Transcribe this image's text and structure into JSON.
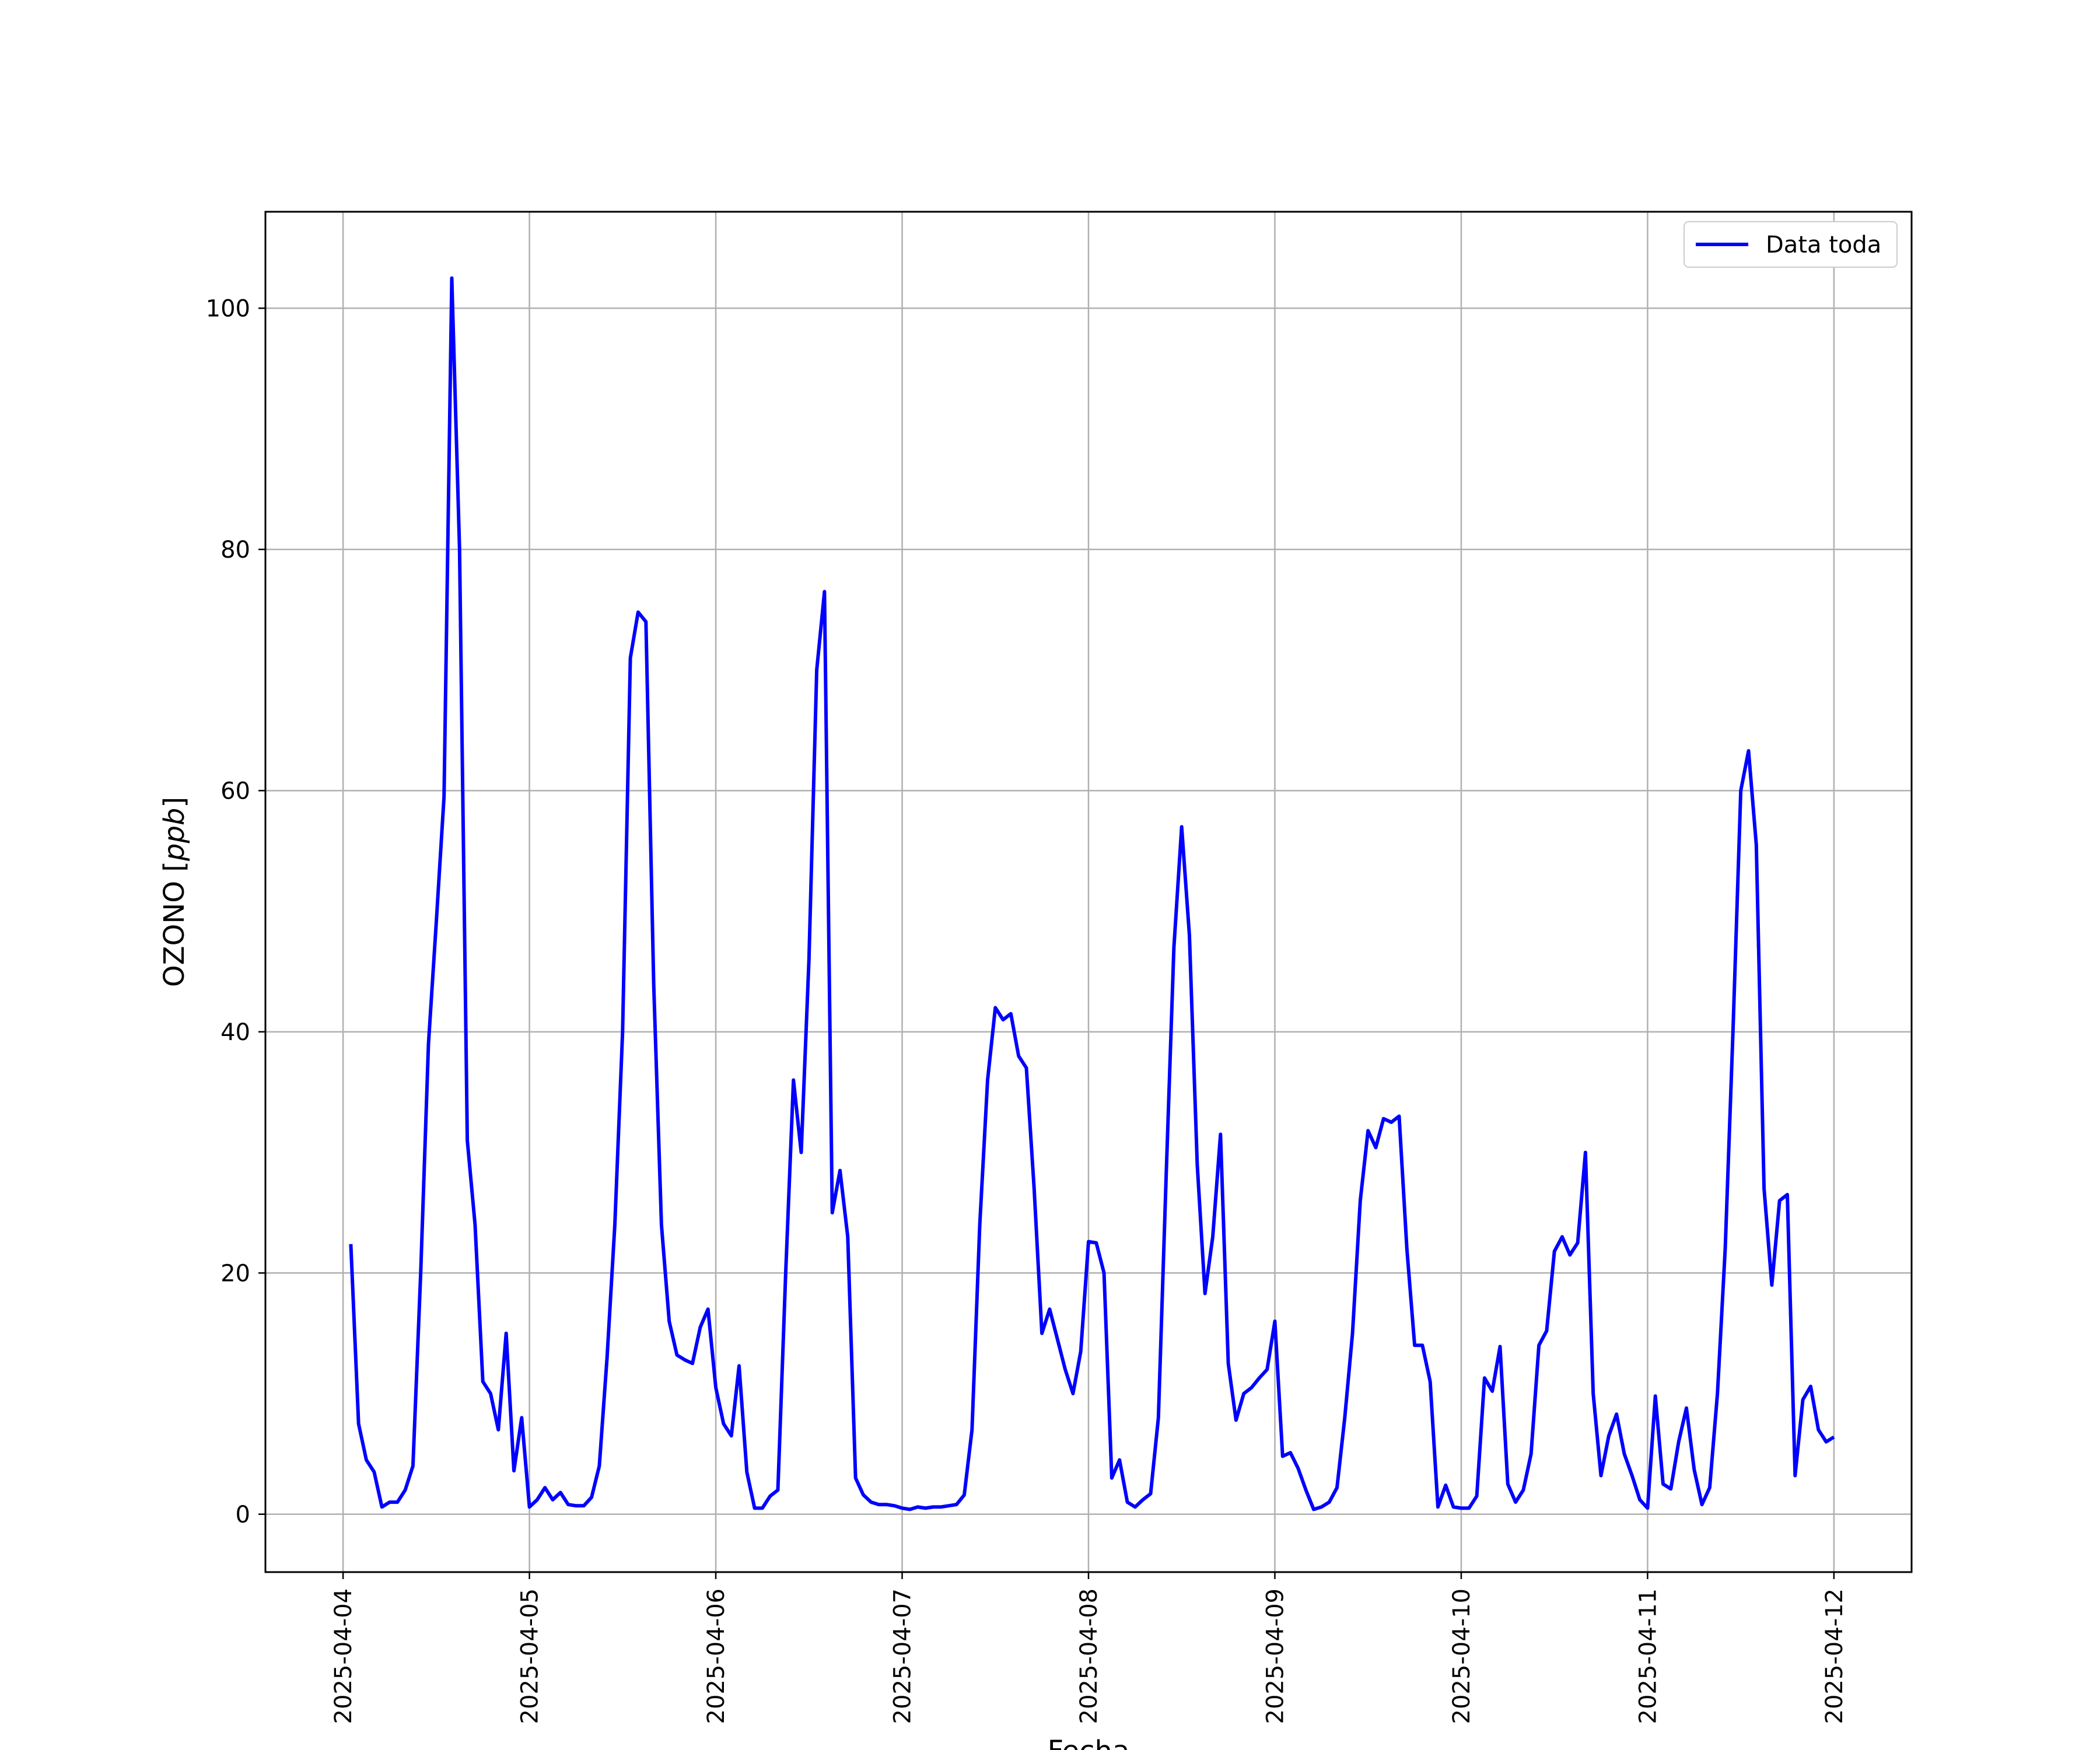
{
  "chart_data": {
    "type": "line",
    "title": "",
    "xlabel": "Fecha",
    "ylabel_prefix": "OZONO [",
    "ylabel_unit": "ppb",
    "ylabel_suffix": "]",
    "x_start": "2025-04-04T00:00",
    "x_end": "2025-04-12T00:00",
    "xlim": [
      "2025-04-03T14:00",
      "2025-04-12T10:00"
    ],
    "ylim": [
      -4.8,
      108
    ],
    "grid": true,
    "legend_position": "top-right",
    "xticks": [
      "2025-04-04",
      "2025-04-05",
      "2025-04-06",
      "2025-04-07",
      "2025-04-08",
      "2025-04-09",
      "2025-04-10",
      "2025-04-11",
      "2025-04-12"
    ],
    "yticks": [
      0,
      20,
      40,
      60,
      80,
      100
    ],
    "series": [
      {
        "name": "Data toda",
        "color": "#0000ff",
        "x": [
          "2025-04-04T01:00",
          "2025-04-04T02:00",
          "2025-04-04T03:00",
          "2025-04-04T04:00",
          "2025-04-04T05:00",
          "2025-04-04T06:00",
          "2025-04-04T07:00",
          "2025-04-04T08:00",
          "2025-04-04T09:00",
          "2025-04-04T10:00",
          "2025-04-04T11:00",
          "2025-04-04T12:00",
          "2025-04-04T13:00",
          "2025-04-04T14:00",
          "2025-04-04T15:00",
          "2025-04-04T16:00",
          "2025-04-04T17:00",
          "2025-04-04T18:00",
          "2025-04-04T19:00",
          "2025-04-04T20:00",
          "2025-04-04T21:00",
          "2025-04-04T22:00",
          "2025-04-04T23:00",
          "2025-04-05T00:00",
          "2025-04-05T01:00",
          "2025-04-05T02:00",
          "2025-04-05T03:00",
          "2025-04-05T04:00",
          "2025-04-05T05:00",
          "2025-04-05T06:00",
          "2025-04-05T07:00",
          "2025-04-05T08:00",
          "2025-04-05T09:00",
          "2025-04-05T10:00",
          "2025-04-05T11:00",
          "2025-04-05T12:00",
          "2025-04-05T13:00",
          "2025-04-05T14:00",
          "2025-04-05T15:00",
          "2025-04-05T16:00",
          "2025-04-05T17:00",
          "2025-04-05T18:00",
          "2025-04-05T19:00",
          "2025-04-05T20:00",
          "2025-04-05T21:00",
          "2025-04-05T22:00",
          "2025-04-05T23:00",
          "2025-04-06T00:00",
          "2025-04-06T01:00",
          "2025-04-06T02:00",
          "2025-04-06T03:00",
          "2025-04-06T04:00",
          "2025-04-06T05:00",
          "2025-04-06T06:00",
          "2025-04-06T07:00",
          "2025-04-06T08:00",
          "2025-04-06T09:00",
          "2025-04-06T10:00",
          "2025-04-06T11:00",
          "2025-04-06T12:00",
          "2025-04-06T13:00",
          "2025-04-06T14:00",
          "2025-04-06T15:00",
          "2025-04-06T16:00",
          "2025-04-06T17:00",
          "2025-04-06T18:00",
          "2025-04-06T19:00",
          "2025-04-06T20:00",
          "2025-04-06T21:00",
          "2025-04-06T22:00",
          "2025-04-06T23:00",
          "2025-04-07T00:00",
          "2025-04-07T01:00",
          "2025-04-07T02:00",
          "2025-04-07T03:00",
          "2025-04-07T04:00",
          "2025-04-07T05:00",
          "2025-04-07T06:00",
          "2025-04-07T07:00",
          "2025-04-07T08:00",
          "2025-04-07T09:00",
          "2025-04-07T10:00",
          "2025-04-07T11:00",
          "2025-04-07T12:00",
          "2025-04-07T13:00",
          "2025-04-07T14:00",
          "2025-04-07T15:00",
          "2025-04-07T16:00",
          "2025-04-07T17:00",
          "2025-04-07T18:00",
          "2025-04-07T19:00",
          "2025-04-07T20:00",
          "2025-04-07T21:00",
          "2025-04-07T22:00",
          "2025-04-07T23:00",
          "2025-04-08T00:00",
          "2025-04-08T01:00",
          "2025-04-08T02:00",
          "2025-04-08T03:00",
          "2025-04-08T04:00",
          "2025-04-08T05:00",
          "2025-04-08T06:00",
          "2025-04-08T07:00",
          "2025-04-08T08:00",
          "2025-04-08T09:00",
          "2025-04-08T10:00",
          "2025-04-08T11:00",
          "2025-04-08T12:00",
          "2025-04-08T13:00",
          "2025-04-08T14:00",
          "2025-04-08T15:00",
          "2025-04-08T16:00",
          "2025-04-08T17:00",
          "2025-04-08T18:00",
          "2025-04-08T19:00",
          "2025-04-08T20:00",
          "2025-04-08T21:00",
          "2025-04-08T22:00",
          "2025-04-08T23:00",
          "2025-04-09T00:00",
          "2025-04-09T01:00",
          "2025-04-09T02:00",
          "2025-04-09T03:00",
          "2025-04-09T04:00",
          "2025-04-09T05:00",
          "2025-04-09T06:00",
          "2025-04-09T07:00",
          "2025-04-09T08:00",
          "2025-04-09T09:00",
          "2025-04-09T10:00",
          "2025-04-09T11:00",
          "2025-04-09T12:00",
          "2025-04-09T13:00",
          "2025-04-09T14:00",
          "2025-04-09T15:00",
          "2025-04-09T16:00",
          "2025-04-09T17:00",
          "2025-04-09T18:00",
          "2025-04-09T19:00",
          "2025-04-09T20:00",
          "2025-04-09T21:00",
          "2025-04-09T22:00",
          "2025-04-09T23:00",
          "2025-04-10T00:00",
          "2025-04-10T01:00",
          "2025-04-10T02:00",
          "2025-04-10T03:00",
          "2025-04-10T04:00",
          "2025-04-10T05:00",
          "2025-04-10T06:00",
          "2025-04-10T07:00",
          "2025-04-10T08:00",
          "2025-04-10T09:00",
          "2025-04-10T10:00",
          "2025-04-10T11:00",
          "2025-04-10T12:00",
          "2025-04-10T13:00",
          "2025-04-10T14:00",
          "2025-04-10T15:00",
          "2025-04-10T16:00",
          "2025-04-10T17:00",
          "2025-04-10T18:00",
          "2025-04-10T19:00",
          "2025-04-10T20:00",
          "2025-04-10T21:00",
          "2025-04-10T22:00",
          "2025-04-10T23:00",
          "2025-04-11T00:00",
          "2025-04-11T01:00",
          "2025-04-11T02:00",
          "2025-04-11T03:00",
          "2025-04-11T04:00",
          "2025-04-11T05:00",
          "2025-04-11T06:00",
          "2025-04-11T07:00",
          "2025-04-11T08:00",
          "2025-04-11T09:00",
          "2025-04-11T10:00",
          "2025-04-11T11:00",
          "2025-04-11T12:00",
          "2025-04-11T13:00",
          "2025-04-11T14:00",
          "2025-04-11T15:00",
          "2025-04-11T16:00",
          "2025-04-11T17:00",
          "2025-04-11T18:00",
          "2025-04-11T19:00",
          "2025-04-11T20:00",
          "2025-04-11T21:00",
          "2025-04-11T22:00",
          "2025-04-11T23:00",
          "2025-04-12T00:00"
        ],
        "y": [
          22.4,
          7.5,
          4.5,
          3.5,
          0.6,
          1.0,
          1.0,
          2.0,
          4.0,
          20.0,
          39.0,
          49.0,
          59.5,
          102.5,
          80.0,
          31.0,
          24.0,
          11.0,
          10.0,
          7.0,
          15.0,
          3.6,
          8.0,
          0.6,
          1.2,
          2.2,
          1.2,
          1.8,
          0.8,
          0.7,
          0.7,
          1.4,
          4.0,
          13.0,
          24.0,
          40.0,
          71.0,
          74.8,
          74.0,
          44.0,
          24.0,
          16.0,
          13.2,
          12.8,
          12.5,
          15.5,
          17.0,
          10.5,
          7.5,
          6.5,
          12.3,
          3.5,
          0.5,
          0.5,
          1.5,
          2.0,
          20.0,
          36.0,
          30.0,
          46.0,
          70.0,
          76.5,
          25.0,
          28.5,
          23.0,
          3.0,
          1.6,
          1.0,
          0.8,
          0.8,
          0.7,
          0.5,
          0.4,
          0.6,
          0.5,
          0.6,
          0.6,
          0.7,
          0.8,
          1.6,
          7.0,
          24.0,
          36.0,
          42.0,
          41.0,
          41.5,
          38.0,
          37.0,
          27.0,
          15.0,
          17.0,
          14.5,
          12.0,
          10.0,
          13.5,
          22.6,
          22.5,
          20.0,
          3.0,
          4.5,
          1.0,
          0.6,
          1.2,
          1.7,
          8.0,
          28.0,
          47.0,
          57.0,
          48.0,
          29.0,
          18.3,
          23.0,
          31.5,
          12.5,
          7.8,
          10.0,
          10.5,
          11.3,
          12.0,
          16.0,
          4.8,
          5.1,
          3.8,
          2.0,
          0.4,
          0.6,
          1.0,
          2.2,
          8.0,
          15.0,
          26.0,
          31.8,
          30.4,
          32.8,
          32.5,
          33.0,
          22.0,
          14.0,
          14.0,
          11.0,
          0.6,
          2.4,
          0.6,
          0.5,
          0.5,
          1.5,
          11.3,
          10.2,
          13.9,
          2.5,
          1.0,
          2.0,
          5.0,
          14.0,
          15.2,
          21.8,
          23.0,
          21.5,
          22.5,
          30.0,
          10.0,
          3.2,
          6.5,
          8.3,
          5.0,
          3.2,
          1.2,
          0.5,
          9.8,
          2.5,
          2.1,
          6.0,
          8.8,
          3.7,
          0.8,
          2.2,
          10.0,
          22.0,
          40.0,
          60.0,
          63.3,
          55.5,
          27.0,
          19.0,
          26.0,
          26.5,
          3.2,
          9.5,
          10.6,
          7.0,
          6.0,
          6.4
        ]
      }
    ]
  }
}
